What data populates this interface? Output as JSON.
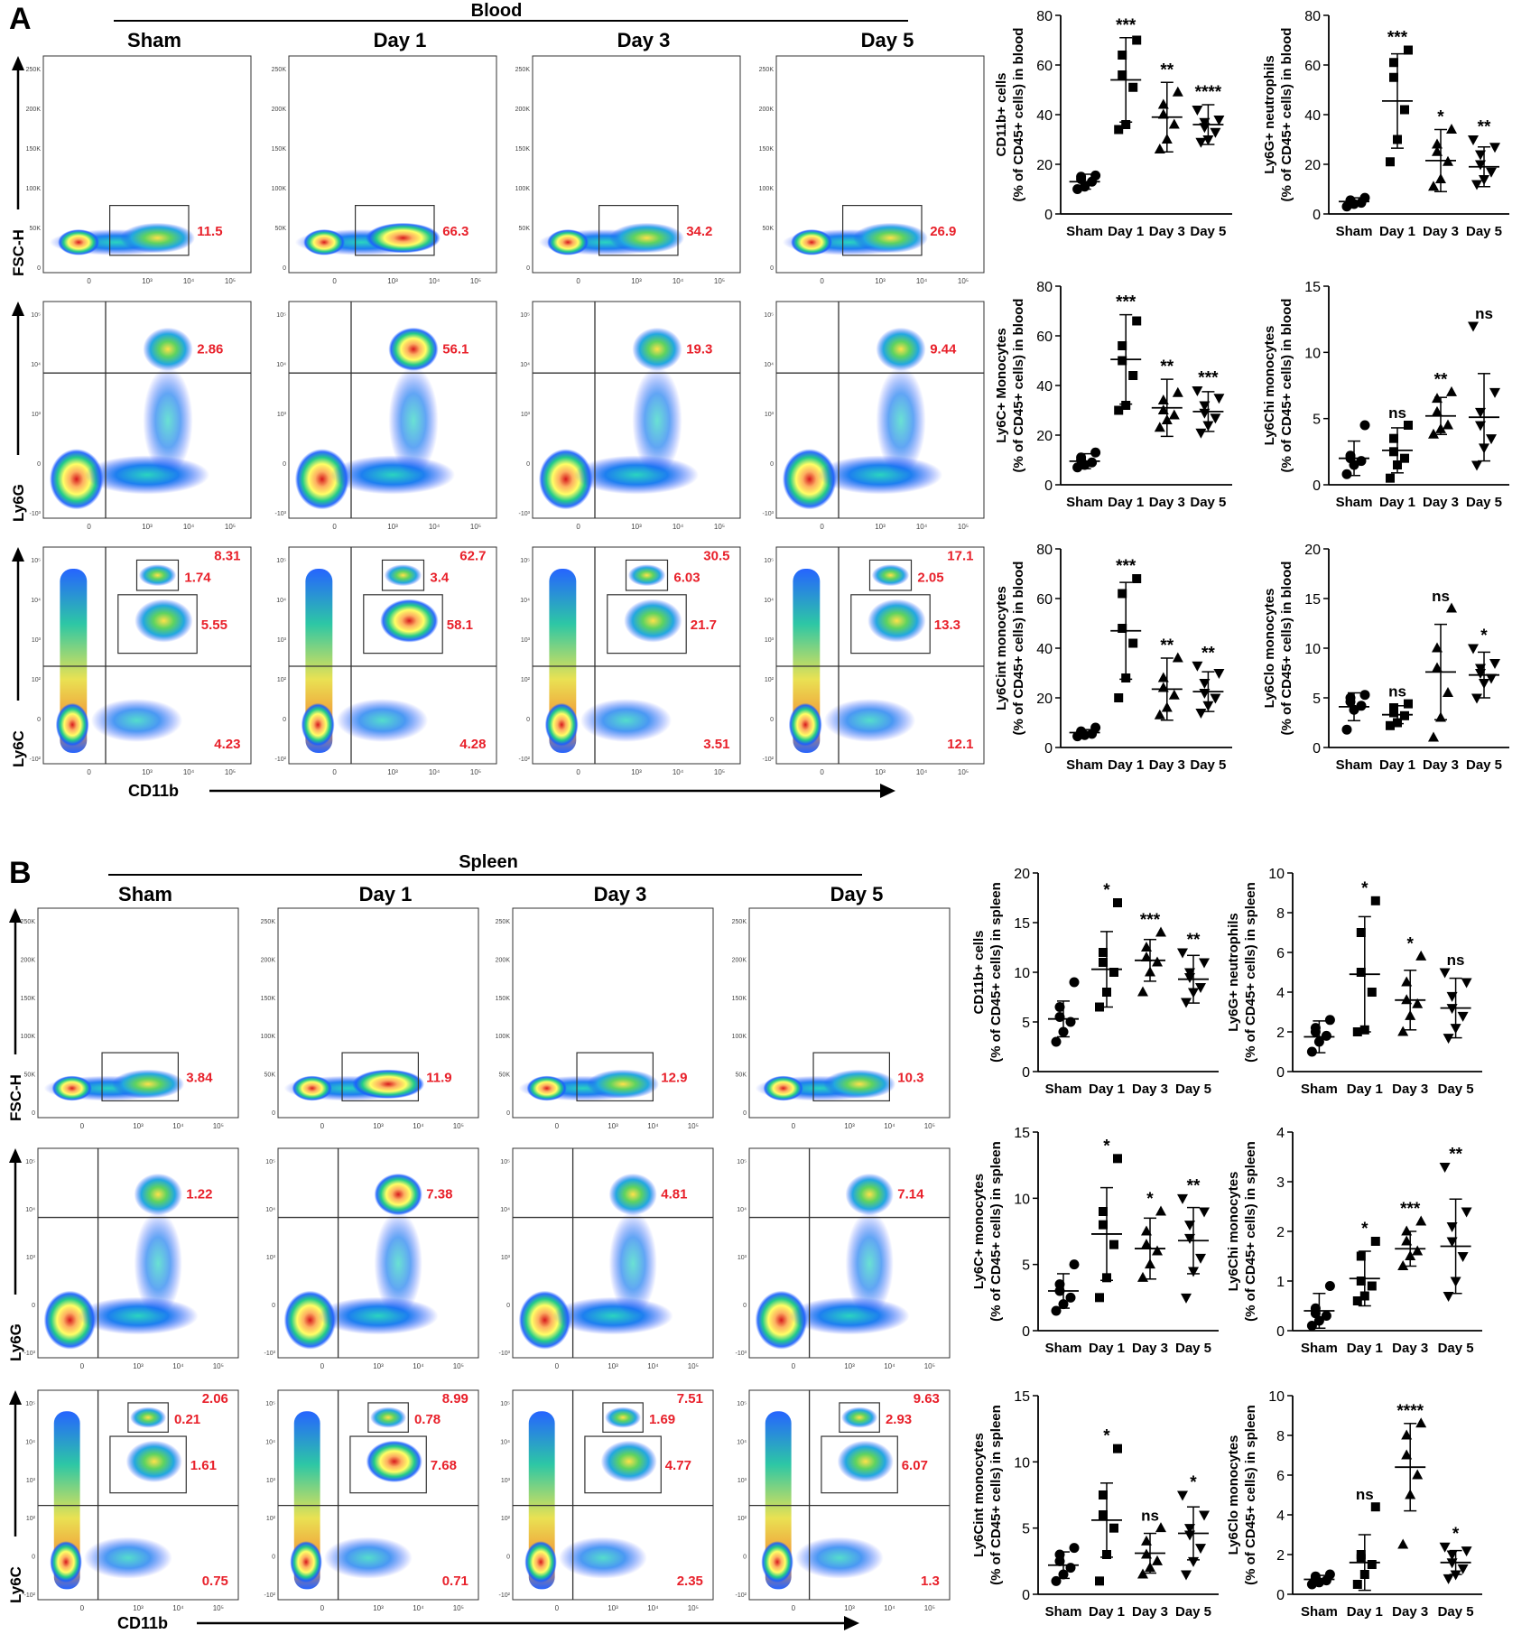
{
  "panels": [
    {
      "letter": "A",
      "tissue": "Blood",
      "groups": [
        "Sham",
        "Day 1",
        "Day 3",
        "Day 5"
      ],
      "flow_rows": [
        {
          "y_label": "FSC-H",
          "x_ticks": [
            "0",
            "10³",
            "10⁴",
            "10⁵"
          ],
          "y_ticks": [
            "0",
            "50K",
            "100K",
            "150K",
            "200K",
            "250K"
          ],
          "values": [
            [
              "11.5"
            ],
            [
              "66.3"
            ],
            [
              "34.2"
            ],
            [
              "26.9"
            ]
          ]
        },
        {
          "y_label": "Ly6G",
          "x_ticks": [
            "0",
            "10³",
            "10⁴",
            "10⁵"
          ],
          "y_ticks": [
            "-10³",
            "0",
            "10³",
            "10⁴",
            "10⁵"
          ],
          "values": [
            [
              "2.86"
            ],
            [
              "56.1"
            ],
            [
              "19.3"
            ],
            [
              "9.44"
            ]
          ]
        },
        {
          "y_label": "Ly6C",
          "x_ticks": [
            "0",
            "10³",
            "10⁴",
            "10⁵"
          ],
          "y_ticks": [
            "-10²",
            "0",
            "10²",
            "10³",
            "10⁴",
            "10⁵"
          ],
          "values": [
            [
              "8.31",
              "1.74",
              "5.55",
              "4.23"
            ],
            [
              "62.7",
              "3.4",
              "58.1",
              "4.28"
            ],
            [
              "30.5",
              "6.03",
              "21.7",
              "3.51"
            ],
            [
              "17.1",
              "2.05",
              "13.3",
              "12.1"
            ]
          ]
        }
      ],
      "x_axis_label": "CD11b"
    },
    {
      "letter": "B",
      "tissue": "Spleen",
      "groups": [
        "Sham",
        "Day 1",
        "Day 3",
        "Day 5"
      ],
      "flow_rows": [
        {
          "y_label": "FSC-H",
          "x_ticks": [
            "0",
            "10³",
            "10⁴",
            "10⁵"
          ],
          "y_ticks": [
            "0",
            "50K",
            "100K",
            "150K",
            "200K",
            "250K"
          ],
          "values": [
            [
              "3.84"
            ],
            [
              "11.9"
            ],
            [
              "12.9"
            ],
            [
              "10.3"
            ]
          ]
        },
        {
          "y_label": "Ly6G",
          "x_ticks": [
            "0",
            "10³",
            "10⁴",
            "10⁵"
          ],
          "y_ticks": [
            "-10³",
            "0",
            "10³",
            "10⁴",
            "10⁵"
          ],
          "values": [
            [
              "1.22"
            ],
            [
              "7.38"
            ],
            [
              "4.81"
            ],
            [
              "7.14"
            ]
          ]
        },
        {
          "y_label": "Ly6C",
          "x_ticks": [
            "0",
            "10³",
            "10⁴",
            "10⁵"
          ],
          "y_ticks": [
            "-10²",
            "0",
            "10²",
            "10³",
            "10⁴",
            "10⁵"
          ],
          "values": [
            [
              "2.06",
              "0.21",
              "1.61",
              "0.75"
            ],
            [
              "8.99",
              "0.78",
              "7.68",
              "0.71"
            ],
            [
              "7.51",
              "1.69",
              "4.77",
              "2.35"
            ],
            [
              "9.63",
              "2.93",
              "6.07",
              "1.3"
            ]
          ]
        }
      ],
      "x_axis_label": "CD11b"
    }
  ],
  "chart_data": [
    {
      "type": "scatter",
      "panel": "A",
      "ylabel": "CD11b+ cells\n(% of CD45+ cells) in blood",
      "ylim": [
        0,
        80
      ],
      "yticks": [
        0,
        20,
        40,
        60,
        80
      ],
      "categories": [
        "Sham",
        "Day 1",
        "Day 3",
        "Day 5"
      ],
      "points": [
        [
          10,
          11,
          13,
          14,
          15,
          15.5
        ],
        [
          34,
          36,
          51,
          56,
          64,
          70
        ],
        [
          26,
          30,
          36,
          40,
          44,
          49
        ],
        [
          29,
          30,
          33,
          35,
          37,
          38,
          42
        ]
      ],
      "means": [
        13,
        54,
        39,
        36
      ],
      "sd": [
        3,
        17,
        14,
        8
      ],
      "significance": [
        "",
        "***",
        "**",
        "****"
      ]
    },
    {
      "type": "scatter",
      "panel": "A",
      "ylabel": "Ly6G+ neutrophils\n(% of CD45+ cells) in blood",
      "ylim": [
        0,
        80
      ],
      "yticks": [
        0,
        20,
        40,
        60,
        80
      ],
      "categories": [
        "Sham",
        "Day 1",
        "Day 3",
        "Day 5"
      ],
      "points": [
        [
          3,
          4,
          4.5,
          5,
          5.5,
          6.5
        ],
        [
          21,
          30,
          42,
          55,
          61,
          66
        ],
        [
          11,
          14,
          21,
          25,
          28,
          34
        ],
        [
          12,
          14,
          17,
          20,
          24,
          27,
          30
        ]
      ],
      "means": [
        5,
        45.5,
        21.5,
        19
      ],
      "sd": [
        1.5,
        19,
        12.5,
        8
      ],
      "significance": [
        "",
        "***",
        "*",
        "**"
      ]
    },
    {
      "type": "scatter",
      "panel": "A",
      "ylabel": "Ly6C+ Monocytes\n(% of CD45+ cells) in blood",
      "ylim": [
        0,
        80
      ],
      "yticks": [
        0,
        20,
        40,
        60,
        80
      ],
      "categories": [
        "Sham",
        "Day 1",
        "Day 3",
        "Day 5"
      ],
      "points": [
        [
          7,
          8,
          9,
          10,
          11,
          13
        ],
        [
          30,
          32,
          44,
          50,
          56,
          66
        ],
        [
          23,
          26,
          28,
          30,
          34,
          37
        ],
        [
          21,
          24,
          27,
          29,
          32,
          35,
          38
        ]
      ],
      "means": [
        9.5,
        50.5,
        31,
        29.5
      ],
      "sd": [
        3,
        18,
        11.5,
        8
      ],
      "significance": [
        "",
        "***",
        "**",
        "***"
      ]
    },
    {
      "type": "scatter",
      "panel": "A",
      "ylabel": "Ly6Chi monocytes\n(% of CD45+ cells) in blood",
      "ylim": [
        0,
        15
      ],
      "yticks": [
        0,
        5,
        10,
        15
      ],
      "categories": [
        "Sham",
        "Day 1",
        "Day 3",
        "Day 5"
      ],
      "points": [
        [
          0.8,
          1.5,
          1.8,
          2,
          2.2,
          4.5
        ],
        [
          0.5,
          1.5,
          2,
          2.5,
          3.5,
          4.5
        ],
        [
          3.8,
          4.2,
          4.5,
          5.5,
          6.5,
          7
        ],
        [
          1.5,
          2.8,
          3.5,
          4.5,
          5.5,
          7,
          12
        ]
      ],
      "means": [
        2,
        2.6,
        5.2,
        5.1
      ],
      "sd": [
        1.3,
        1.7,
        1.4,
        3.3
      ],
      "significance": [
        "",
        "ns",
        "**",
        "ns"
      ]
    },
    {
      "type": "scatter",
      "panel": "A",
      "ylabel": "Ly6Cint monocytes\n(% of CD45+ cells) in blood",
      "ylim": [
        0,
        80
      ],
      "yticks": [
        0,
        20,
        40,
        60,
        80
      ],
      "categories": [
        "Sham",
        "Day 1",
        "Day 3",
        "Day 5"
      ],
      "points": [
        [
          4.5,
          5,
          5.5,
          6,
          6.5,
          8
        ],
        [
          20,
          28,
          42,
          48,
          62,
          68
        ],
        [
          13,
          16,
          21,
          24,
          28,
          36
        ],
        [
          14,
          17,
          20,
          22,
          26,
          30,
          33
        ]
      ],
      "means": [
        6,
        47,
        23.5,
        22.5
      ],
      "sd": [
        1.2,
        19.5,
        12.5,
        8
      ],
      "significance": [
        "",
        "***",
        "**",
        "**"
      ]
    },
    {
      "type": "scatter",
      "panel": "A",
      "ylabel": "Ly6Clo monocytes\n(% of CD45+ cells) in blood",
      "ylim": [
        0,
        20
      ],
      "yticks": [
        0,
        5,
        10,
        15,
        20
      ],
      "categories": [
        "Sham",
        "Day 1",
        "Day 3",
        "Day 5"
      ],
      "points": [
        [
          1.8,
          3.8,
          4.2,
          4.6,
          5,
          5.3
        ],
        [
          2.2,
          2.5,
          3.2,
          3.5,
          4,
          4.4
        ],
        [
          1,
          3,
          5.5,
          8,
          10,
          14
        ],
        [
          5,
          6.5,
          7,
          7.5,
          8,
          8.5,
          10
        ]
      ],
      "means": [
        4.1,
        3.3,
        7.6,
        7.3
      ],
      "sd": [
        1.4,
        0.9,
        4.8,
        2.3
      ],
      "significance": [
        "",
        "ns",
        "ns",
        "*"
      ]
    },
    {
      "type": "scatter",
      "panel": "B",
      "ylabel": "CD11b+ cells\n(% of CD45+ cells) in spleen",
      "ylim": [
        0,
        20
      ],
      "yticks": [
        0,
        5,
        10,
        15,
        20
      ],
      "categories": [
        "Sham",
        "Day 1",
        "Day 3",
        "Day 5"
      ],
      "points": [
        [
          3,
          4,
          5,
          5.5,
          6.5,
          9
        ],
        [
          6.5,
          8,
          10,
          11,
          12,
          17
        ],
        [
          8,
          10,
          11,
          11.5,
          12.5,
          14
        ],
        [
          7,
          8,
          8.5,
          9.5,
          10,
          11,
          12
        ]
      ],
      "means": [
        5.3,
        10.3,
        11.2,
        9.3
      ],
      "sd": [
        1.8,
        3.8,
        2.1,
        2.4
      ],
      "significance": [
        "",
        "*",
        "***",
        "**"
      ]
    },
    {
      "type": "scatter",
      "panel": "B",
      "ylabel": "Ly6G+ neutrophils\n(% of CD45+ cells) in spleen",
      "ylim": [
        0,
        10
      ],
      "yticks": [
        0,
        2,
        4,
        6,
        8,
        10
      ],
      "categories": [
        "Sham",
        "Day 1",
        "Day 3",
        "Day 5"
      ],
      "points": [
        [
          1,
          1.5,
          1.8,
          2,
          2.2,
          2.6
        ],
        [
          2,
          2.1,
          4,
          5,
          7,
          8.6
        ],
        [
          2,
          2.8,
          3.4,
          3.6,
          4.5,
          5.8
        ],
        [
          1.7,
          2.2,
          2.8,
          3.2,
          3.8,
          4.5,
          5
        ]
      ],
      "means": [
        1.75,
        4.9,
        3.6,
        3.2
      ],
      "sd": [
        0.8,
        2.9,
        1.5,
        1.5
      ],
      "significance": [
        "",
        "*",
        "*",
        "ns"
      ]
    },
    {
      "type": "scatter",
      "panel": "B",
      "ylabel": "Ly6C+ monocytes\n(% of CD45+ cells) in spleen",
      "ylim": [
        0,
        15
      ],
      "yticks": [
        0,
        5,
        10,
        15
      ],
      "categories": [
        "Sham",
        "Day 1",
        "Day 3",
        "Day 5"
      ],
      "points": [
        [
          1.5,
          2,
          2.5,
          3,
          3.5,
          5
        ],
        [
          2.5,
          4,
          6.5,
          8,
          9,
          13
        ],
        [
          4,
          5,
          6,
          6.5,
          7.5,
          9
        ],
        [
          2.5,
          4.5,
          5.5,
          7,
          8,
          9,
          10
        ]
      ],
      "means": [
        3,
        7.3,
        6.2,
        6.8
      ],
      "sd": [
        1.3,
        3.5,
        2.3,
        2.5
      ],
      "significance": [
        "",
        "*",
        "*",
        "**"
      ]
    },
    {
      "type": "scatter",
      "panel": "B",
      "ylabel": "Ly6Chi monocytes\n(% of CD45+ cells) in spleen",
      "ylim": [
        0,
        4
      ],
      "yticks": [
        0,
        1,
        2,
        3,
        4
      ],
      "categories": [
        "Sham",
        "Day 1",
        "Day 3",
        "Day 5"
      ],
      "points": [
        [
          0.1,
          0.2,
          0.3,
          0.35,
          0.45,
          0.9
        ],
        [
          0.6,
          0.7,
          0.9,
          1,
          1.5,
          1.8
        ],
        [
          1.3,
          1.5,
          1.6,
          1.8,
          2,
          2.2
        ],
        [
          0.7,
          1,
          1.5,
          1.8,
          2.1,
          2.4,
          3.3
        ]
      ],
      "means": [
        0.4,
        1.05,
        1.65,
        1.7
      ],
      "sd": [
        0.35,
        0.55,
        0.35,
        0.95
      ],
      "significance": [
        "",
        "*",
        "***",
        "**"
      ]
    },
    {
      "type": "scatter",
      "panel": "B",
      "ylabel": "Ly6Cint monocytes\n(% of CD45+ cells) in spleen",
      "ylim": [
        0,
        15
      ],
      "yticks": [
        0,
        5,
        10,
        15
      ],
      "categories": [
        "Sham",
        "Day 1",
        "Day 3",
        "Day 5"
      ],
      "points": [
        [
          1,
          1.5,
          2,
          2.5,
          3,
          3.5
        ],
        [
          1,
          3,
          5,
          6,
          7.5,
          11
        ],
        [
          1.5,
          2,
          2.5,
          3,
          4,
          5
        ],
        [
          1.5,
          2.5,
          3.5,
          4.5,
          5,
          6,
          7.5
        ]
      ],
      "means": [
        2.2,
        5.6,
        3.1,
        4.6
      ],
      "sd": [
        1,
        2.8,
        1.5,
        2
      ],
      "significance": [
        "",
        "*",
        "ns",
        "*"
      ]
    },
    {
      "type": "scatter",
      "panel": "B",
      "ylabel": "Ly6Clo monocytes\n(% of CD45+ cells) in spleen",
      "ylim": [
        0,
        10
      ],
      "yticks": [
        0,
        2,
        4,
        6,
        8,
        10
      ],
      "categories": [
        "Sham",
        "Day 1",
        "Day 3",
        "Day 5"
      ],
      "points": [
        [
          0.5,
          0.6,
          0.7,
          0.8,
          0.9,
          1
        ],
        [
          0.5,
          1,
          1.5,
          1.8,
          2,
          4.4
        ],
        [
          2.5,
          5,
          6,
          7,
          8,
          8.6
        ],
        [
          0.8,
          1,
          1.3,
          1.6,
          2,
          2.2,
          2.4
        ]
      ],
      "means": [
        0.75,
        1.6,
        6.4,
        1.6
      ],
      "sd": [
        0.2,
        1.4,
        2.2,
        0.6
      ],
      "significance": [
        "",
        "ns",
        "****",
        "*"
      ]
    }
  ]
}
